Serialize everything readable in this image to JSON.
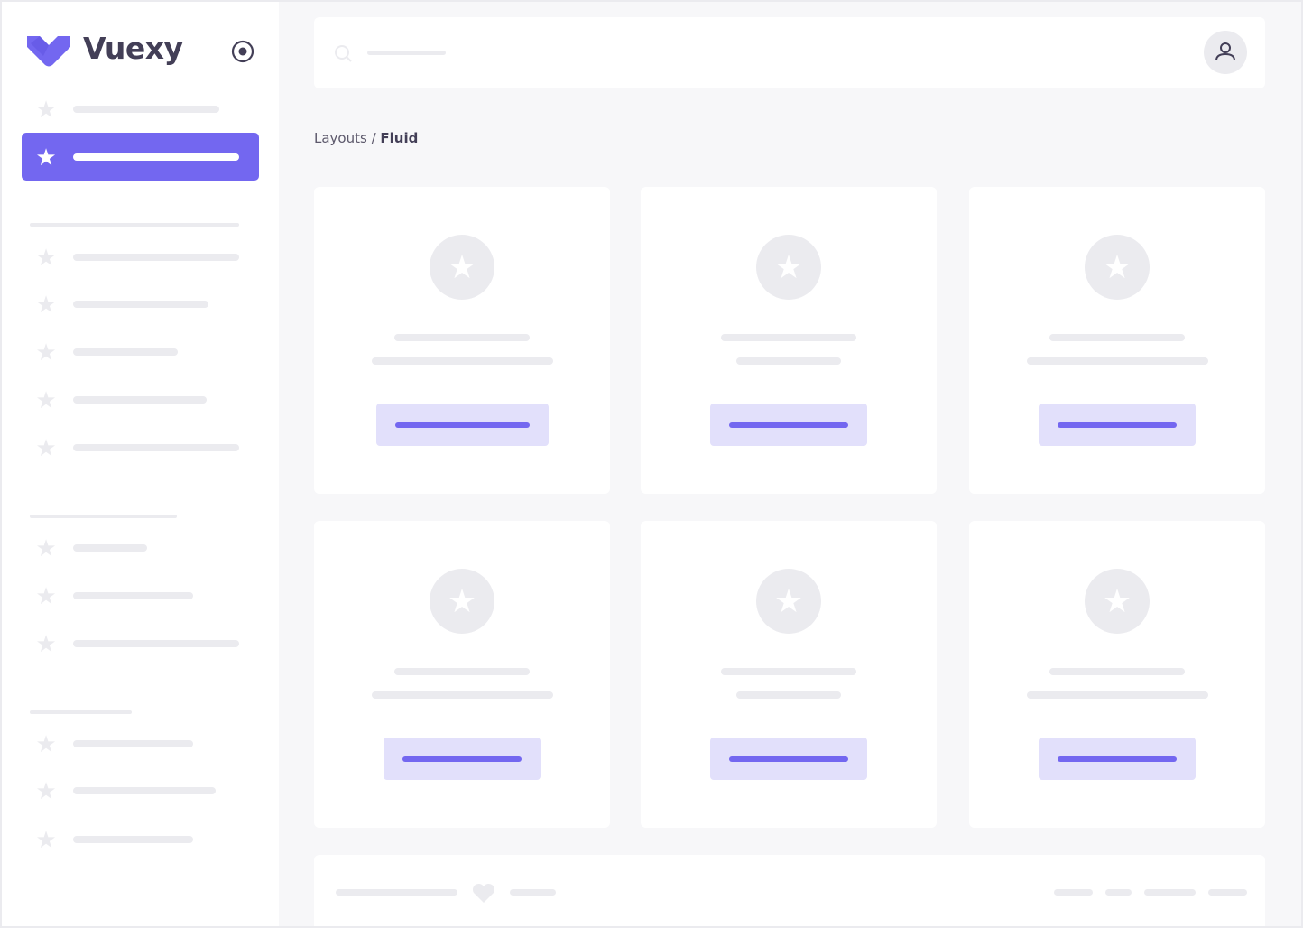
{
  "brand": {
    "name": "Vuexy",
    "color": "#7367f0",
    "toggle_icon": "radio-circle-icon"
  },
  "breadcrumb": {
    "parent": "Layouts",
    "separator": " / ",
    "current": "Fluid"
  },
  "topbar": {
    "search_icon": "search-icon",
    "avatar_icon": "user-icon"
  },
  "colors": {
    "accent": "#7367f0",
    "accent_light": "#e2e0fb",
    "placeholder": "#ebebef",
    "background": "#f7f7f9"
  },
  "sidebar": {
    "active_index": 1,
    "item_icon": "star-icon"
  },
  "cards": {
    "count": 6,
    "icon": "star-icon"
  },
  "footer": {
    "icon": "heart-icon"
  }
}
